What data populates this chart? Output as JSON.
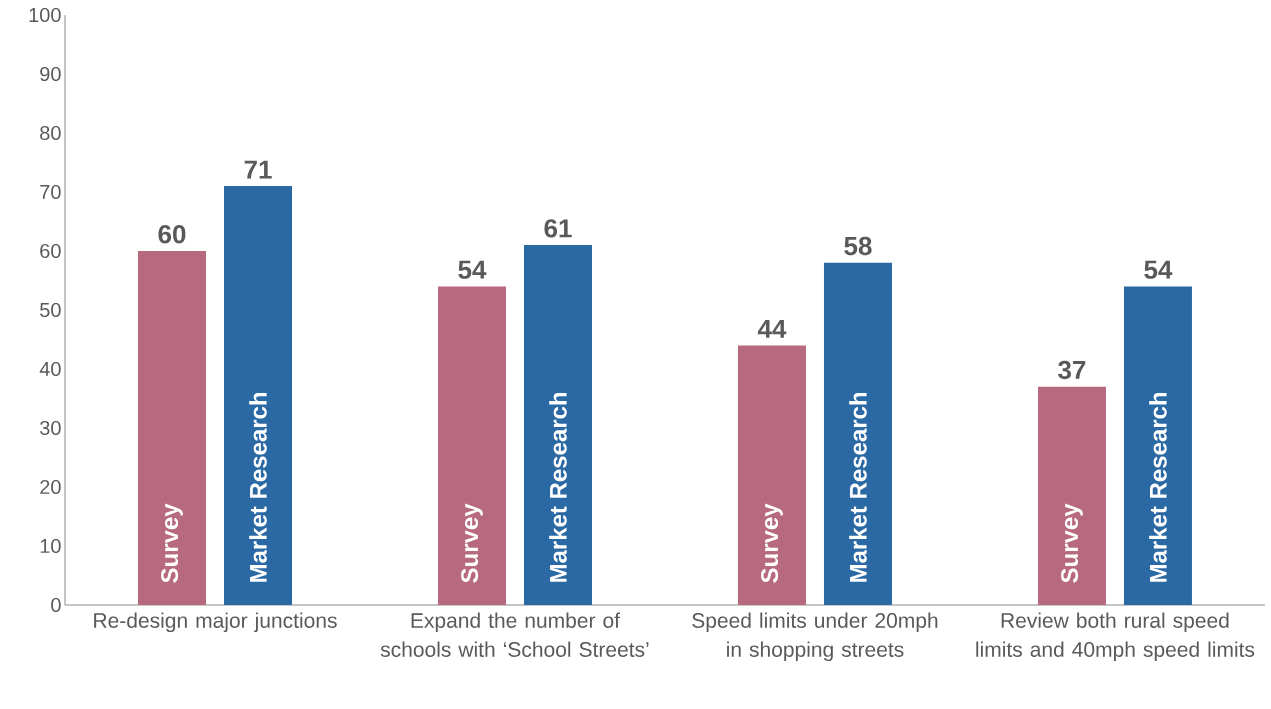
{
  "chart_data": {
    "type": "bar",
    "categories": [
      "Re-design major junctions",
      "Expand the number of schools with ‘School Streets’",
      "Speed limits under 20mph in shopping streets",
      "Review both rural speed limits and 40mph speed limits"
    ],
    "series": [
      {
        "name": "Survey",
        "color": "#b7697f",
        "values": [
          60,
          54,
          44,
          37
        ]
      },
      {
        "name": "Market Research",
        "color": "#2a69a4",
        "values": [
          71,
          61,
          58,
          54
        ]
      }
    ],
    "ylim": [
      0,
      100
    ],
    "yticks": [
      0,
      10,
      20,
      30,
      40,
      50,
      60,
      70,
      80,
      90,
      100
    ],
    "data_labels": true,
    "grid": false
  }
}
